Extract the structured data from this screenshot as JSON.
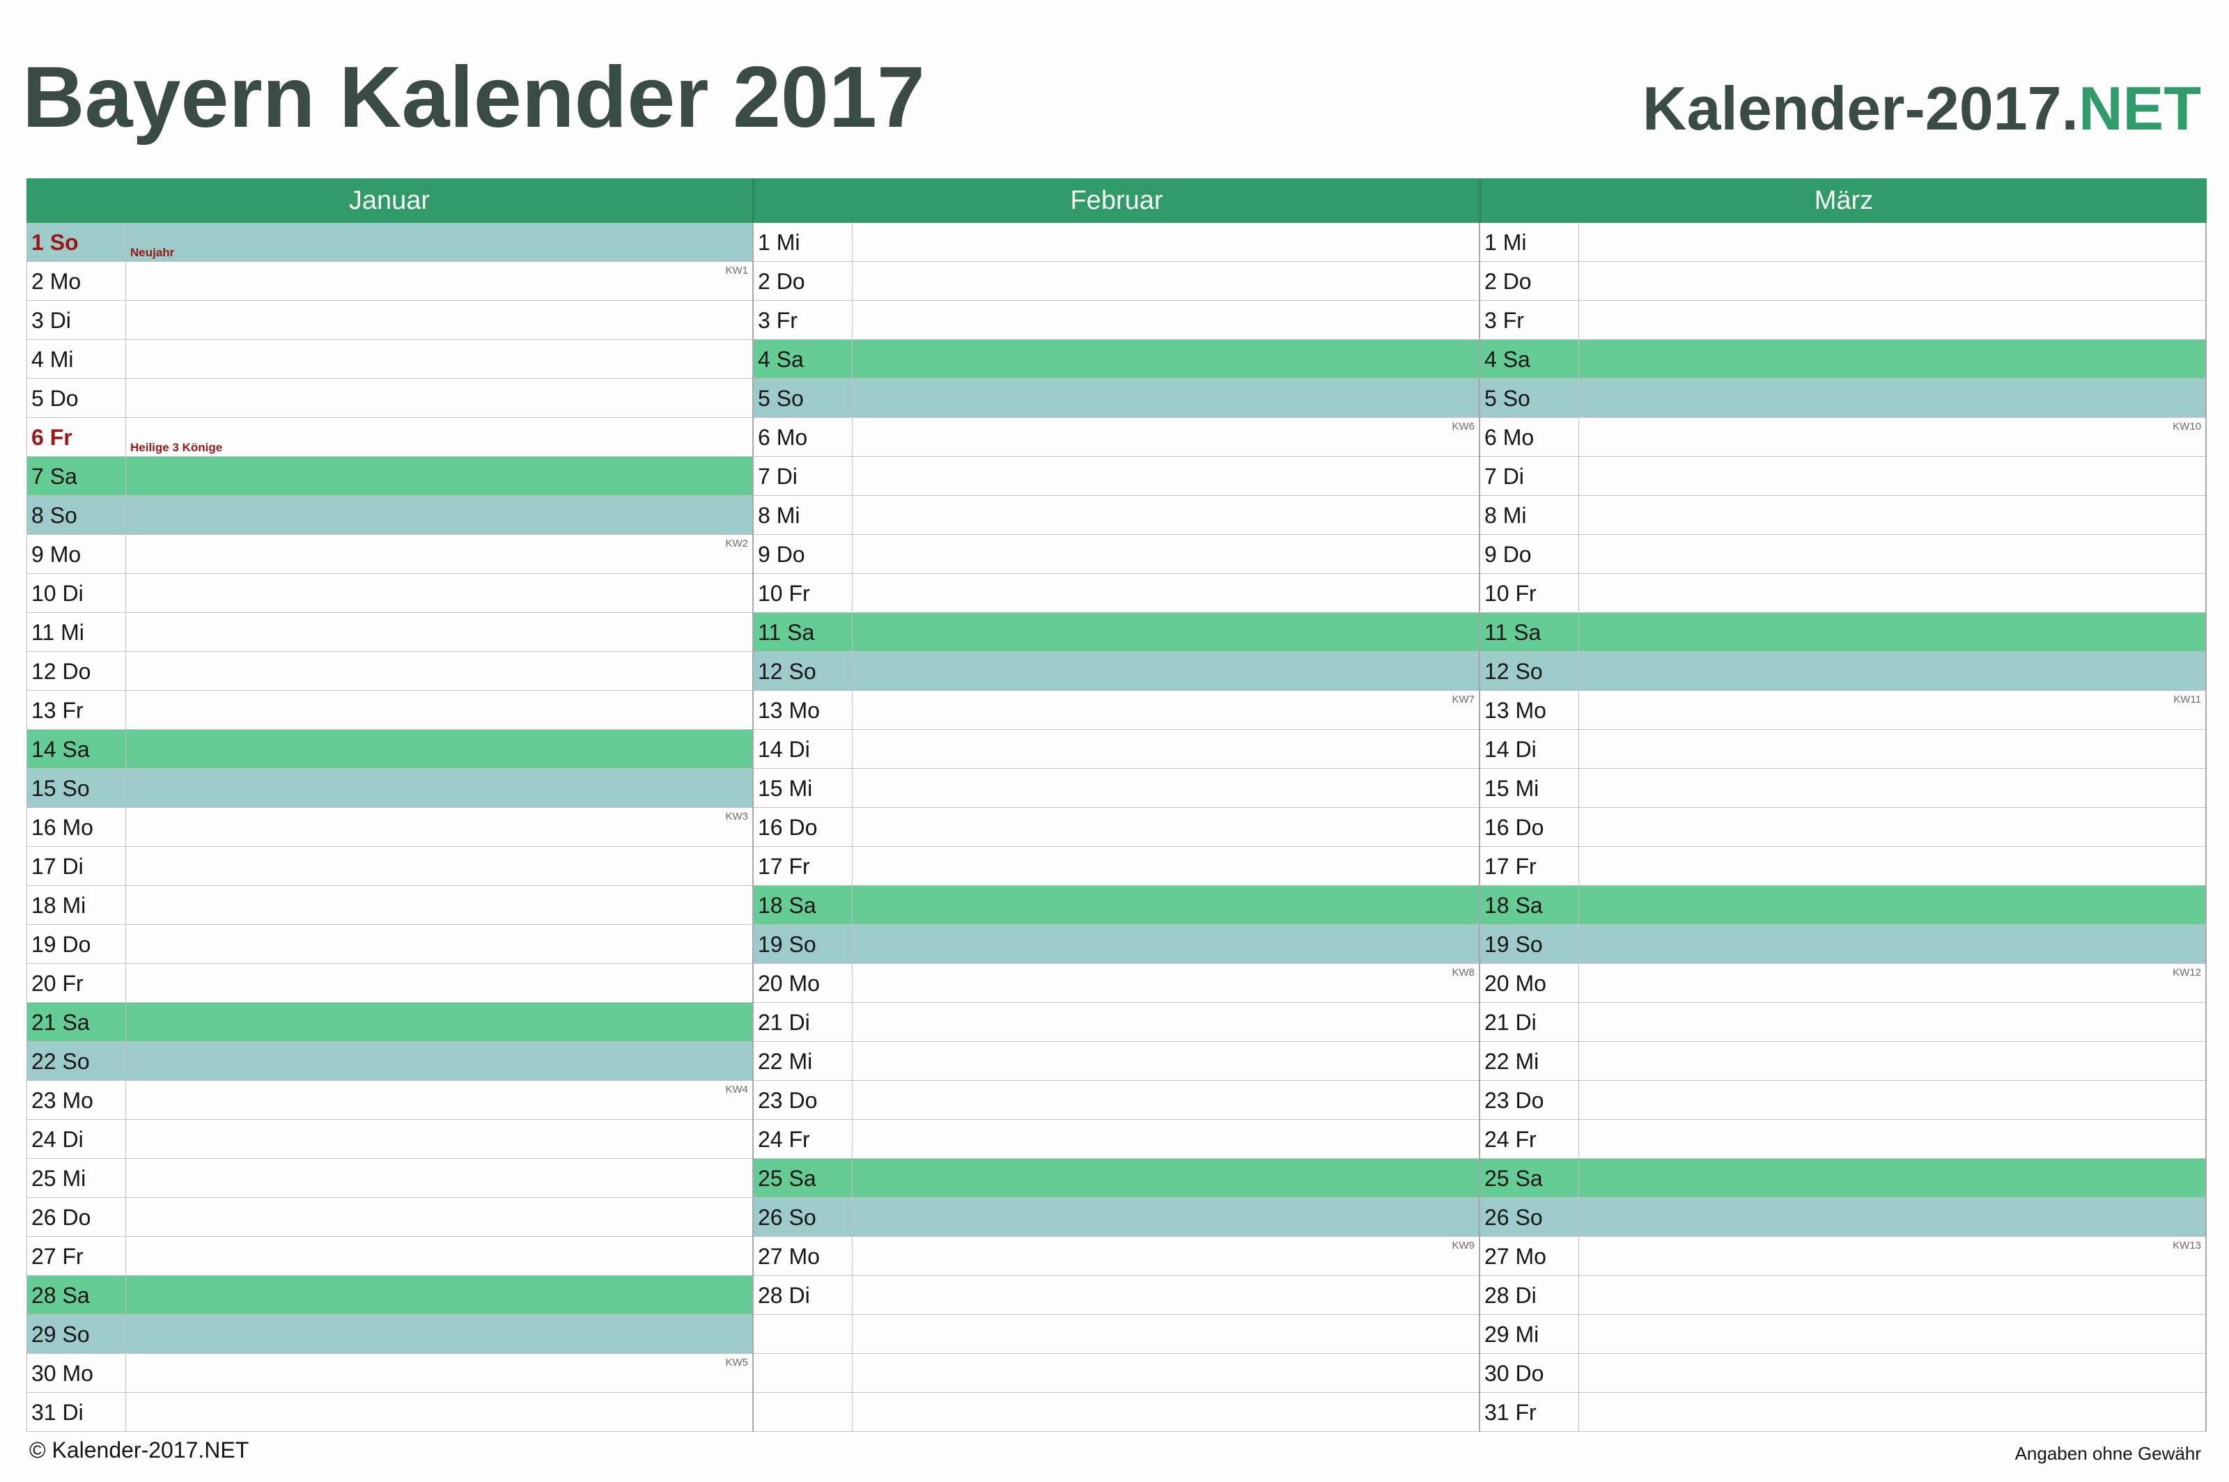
{
  "title": "Bayern Kalender 2017",
  "brand": {
    "prefix": "Kalender-2017.",
    "suffix": "NET"
  },
  "colors": {
    "header": "#319a68",
    "saturday": "#66cc96",
    "sunday": "#9ccbca",
    "holiday_text": "#9b1717",
    "title": "#3a4a45"
  },
  "months": [
    {
      "name": "Januar",
      "days": [
        {
          "label": "1 So",
          "type": "holiday",
          "holiday": "Neujahr"
        },
        {
          "label": "2 Mo",
          "type": "",
          "kw": "KW1"
        },
        {
          "label": "3 Di",
          "type": ""
        },
        {
          "label": "4 Mi",
          "type": ""
        },
        {
          "label": "5 Do",
          "type": ""
        },
        {
          "label": "6 Fr",
          "type": "holiday-label",
          "holiday": "Heilige 3 Könige"
        },
        {
          "label": "7 Sa",
          "type": "sat"
        },
        {
          "label": "8 So",
          "type": "sun"
        },
        {
          "label": "9 Mo",
          "type": "",
          "kw": "KW2"
        },
        {
          "label": "10 Di",
          "type": ""
        },
        {
          "label": "11 Mi",
          "type": ""
        },
        {
          "label": "12 Do",
          "type": ""
        },
        {
          "label": "13 Fr",
          "type": ""
        },
        {
          "label": "14 Sa",
          "type": "sat"
        },
        {
          "label": "15 So",
          "type": "sun"
        },
        {
          "label": "16 Mo",
          "type": "",
          "kw": "KW3"
        },
        {
          "label": "17 Di",
          "type": ""
        },
        {
          "label": "18 Mi",
          "type": ""
        },
        {
          "label": "19 Do",
          "type": ""
        },
        {
          "label": "20 Fr",
          "type": ""
        },
        {
          "label": "21 Sa",
          "type": "sat"
        },
        {
          "label": "22 So",
          "type": "sun"
        },
        {
          "label": "23 Mo",
          "type": "",
          "kw": "KW4"
        },
        {
          "label": "24 Di",
          "type": ""
        },
        {
          "label": "25 Mi",
          "type": ""
        },
        {
          "label": "26 Do",
          "type": ""
        },
        {
          "label": "27 Fr",
          "type": ""
        },
        {
          "label": "28 Sa",
          "type": "sat"
        },
        {
          "label": "29 So",
          "type": "sun"
        },
        {
          "label": "30 Mo",
          "type": "",
          "kw": "KW5"
        },
        {
          "label": "31 Di",
          "type": ""
        }
      ]
    },
    {
      "name": "Februar",
      "days": [
        {
          "label": "1 Mi",
          "type": ""
        },
        {
          "label": "2 Do",
          "type": ""
        },
        {
          "label": "3 Fr",
          "type": ""
        },
        {
          "label": "4 Sa",
          "type": "sat"
        },
        {
          "label": "5 So",
          "type": "sun"
        },
        {
          "label": "6 Mo",
          "type": "",
          "kw": "KW6"
        },
        {
          "label": "7 Di",
          "type": ""
        },
        {
          "label": "8 Mi",
          "type": ""
        },
        {
          "label": "9 Do",
          "type": ""
        },
        {
          "label": "10 Fr",
          "type": ""
        },
        {
          "label": "11 Sa",
          "type": "sat"
        },
        {
          "label": "12 So",
          "type": "sun"
        },
        {
          "label": "13 Mo",
          "type": "",
          "kw": "KW7"
        },
        {
          "label": "14 Di",
          "type": ""
        },
        {
          "label": "15 Mi",
          "type": ""
        },
        {
          "label": "16 Do",
          "type": ""
        },
        {
          "label": "17 Fr",
          "type": ""
        },
        {
          "label": "18 Sa",
          "type": "sat"
        },
        {
          "label": "19 So",
          "type": "sun"
        },
        {
          "label": "20 Mo",
          "type": "",
          "kw": "KW8"
        },
        {
          "label": "21 Di",
          "type": ""
        },
        {
          "label": "22 Mi",
          "type": ""
        },
        {
          "label": "23 Do",
          "type": ""
        },
        {
          "label": "24 Fr",
          "type": ""
        },
        {
          "label": "25 Sa",
          "type": "sat"
        },
        {
          "label": "26 So",
          "type": "sun"
        },
        {
          "label": "27 Mo",
          "type": "",
          "kw": "KW9"
        },
        {
          "label": "28 Di",
          "type": ""
        },
        {
          "label": "",
          "type": ""
        },
        {
          "label": "",
          "type": ""
        },
        {
          "label": "",
          "type": ""
        }
      ]
    },
    {
      "name": "März",
      "days": [
        {
          "label": "1 Mi",
          "type": ""
        },
        {
          "label": "2 Do",
          "type": ""
        },
        {
          "label": "3 Fr",
          "type": ""
        },
        {
          "label": "4 Sa",
          "type": "sat"
        },
        {
          "label": "5 So",
          "type": "sun"
        },
        {
          "label": "6 Mo",
          "type": "",
          "kw": "KW10"
        },
        {
          "label": "7 Di",
          "type": ""
        },
        {
          "label": "8 Mi",
          "type": ""
        },
        {
          "label": "9 Do",
          "type": ""
        },
        {
          "label": "10 Fr",
          "type": ""
        },
        {
          "label": "11 Sa",
          "type": "sat"
        },
        {
          "label": "12 So",
          "type": "sun"
        },
        {
          "label": "13 Mo",
          "type": "",
          "kw": "KW11"
        },
        {
          "label": "14 Di",
          "type": ""
        },
        {
          "label": "15 Mi",
          "type": ""
        },
        {
          "label": "16 Do",
          "type": ""
        },
        {
          "label": "17 Fr",
          "type": ""
        },
        {
          "label": "18 Sa",
          "type": "sat"
        },
        {
          "label": "19 So",
          "type": "sun"
        },
        {
          "label": "20 Mo",
          "type": "",
          "kw": "KW12"
        },
        {
          "label": "21 Di",
          "type": ""
        },
        {
          "label": "22 Mi",
          "type": ""
        },
        {
          "label": "23 Do",
          "type": ""
        },
        {
          "label": "24 Fr",
          "type": ""
        },
        {
          "label": "25 Sa",
          "type": "sat"
        },
        {
          "label": "26 So",
          "type": "sun"
        },
        {
          "label": "27 Mo",
          "type": "",
          "kw": "KW13"
        },
        {
          "label": "28 Di",
          "type": ""
        },
        {
          "label": "29 Mi",
          "type": ""
        },
        {
          "label": "30 Do",
          "type": ""
        },
        {
          "label": "31 Fr",
          "type": ""
        }
      ]
    }
  ],
  "footer": {
    "left": "© Kalender-2017.NET",
    "right": "Angaben ohne Gewähr"
  }
}
